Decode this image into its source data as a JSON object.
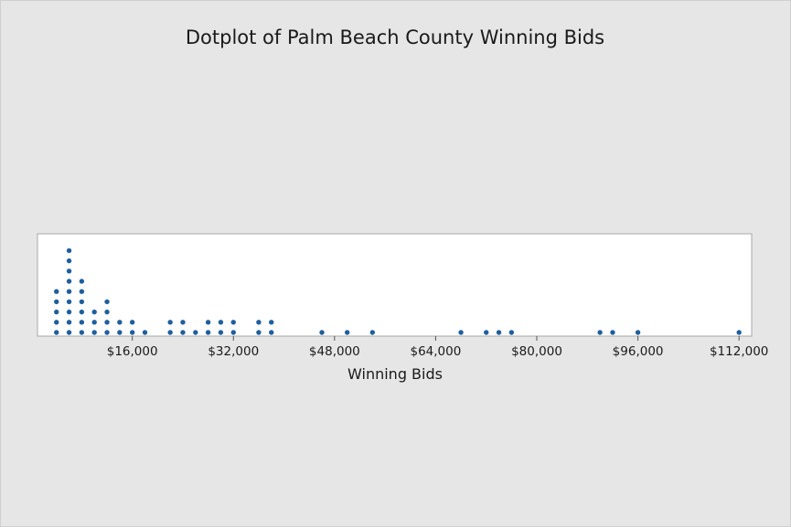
{
  "chart_data": {
    "type": "dotplot",
    "title": "Dotplot of Palm Beach County Winning Bids",
    "xlabel": "Winning Bids",
    "ylabel": "",
    "xlim": [
      1000,
      114000
    ],
    "x_ticks": [
      16000,
      32000,
      48000,
      64000,
      80000,
      96000,
      112000
    ],
    "x_tick_labels": [
      "$16,000",
      "$32,000",
      "$48,000",
      "$64,000",
      "$80,000",
      "$96,000",
      "$112,000"
    ],
    "grid": false,
    "dot_color": "#1f5f9e",
    "stacks": [
      {
        "x": 4000,
        "count": 5
      },
      {
        "x": 6000,
        "count": 9
      },
      {
        "x": 8000,
        "count": 6
      },
      {
        "x": 10000,
        "count": 3
      },
      {
        "x": 12000,
        "count": 4
      },
      {
        "x": 14000,
        "count": 2
      },
      {
        "x": 16000,
        "count": 2
      },
      {
        "x": 18000,
        "count": 1
      },
      {
        "x": 22000,
        "count": 2
      },
      {
        "x": 24000,
        "count": 2
      },
      {
        "x": 26000,
        "count": 1
      },
      {
        "x": 28000,
        "count": 2
      },
      {
        "x": 30000,
        "count": 2
      },
      {
        "x": 32000,
        "count": 2
      },
      {
        "x": 36000,
        "count": 2
      },
      {
        "x": 38000,
        "count": 2
      },
      {
        "x": 46000,
        "count": 1
      },
      {
        "x": 50000,
        "count": 1
      },
      {
        "x": 54000,
        "count": 1
      },
      {
        "x": 68000,
        "count": 1
      },
      {
        "x": 72000,
        "count": 1
      },
      {
        "x": 74000,
        "count": 1
      },
      {
        "x": 76000,
        "count": 1
      },
      {
        "x": 90000,
        "count": 1
      },
      {
        "x": 92000,
        "count": 1
      },
      {
        "x": 96000,
        "count": 1
      },
      {
        "x": 112000,
        "count": 1
      }
    ]
  }
}
